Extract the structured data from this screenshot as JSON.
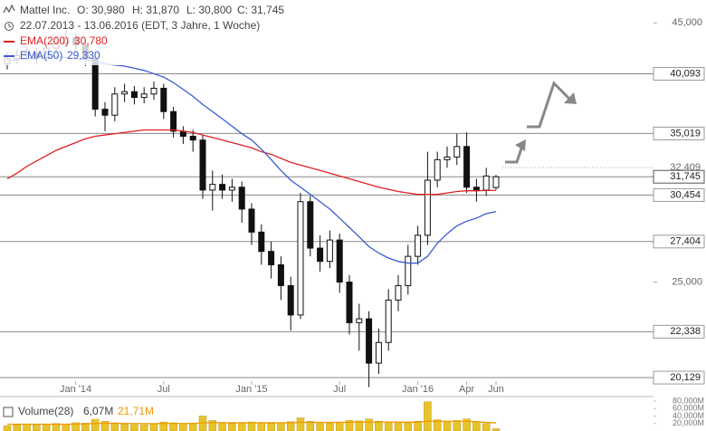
{
  "chart_data": {
    "type": "candlestick",
    "title": "Mattel Inc.",
    "subtitle": "22.07.2013 - 13.06.2016 (EDT, 3 Jahre, 1 Woche)",
    "quote": [
      "O: 30,980",
      "H: 31,870",
      "L: 30,800",
      "C: 31,745"
    ],
    "categories": [
      null,
      null,
      null,
      null,
      null,
      null,
      null,
      "Jan '14",
      null,
      null,
      null,
      null,
      null,
      null,
      null,
      null,
      "Jul",
      null,
      null,
      null,
      null,
      null,
      null,
      null,
      null,
      "Jan '15",
      null,
      null,
      null,
      null,
      null,
      null,
      null,
      null,
      "Jul",
      null,
      null,
      null,
      null,
      null,
      null,
      null,
      "Jan '16",
      null,
      null,
      null,
      null,
      "Apr",
      null,
      null,
      "Jun"
    ],
    "open": [
      41.0,
      41.5,
      41.8,
      42.0,
      41.6,
      42.5,
      43.0,
      43.5,
      42.8,
      41.5,
      37.0,
      36.5,
      38.3,
      38.5,
      38.0,
      38.3,
      38.8,
      36.8,
      35.2,
      34.8,
      34.5,
      30.8,
      31.2,
      30.8,
      31.0,
      29.5,
      28.0,
      26.8,
      26.0,
      24.8,
      23.2,
      30.0,
      27.0,
      26.2,
      27.5,
      25.0,
      22.8,
      23.0,
      20.8,
      21.8,
      24.0,
      24.8,
      26.5,
      27.8,
      31.5,
      33.0,
      33.2,
      34.0,
      31.0,
      30.8,
      30.98
    ],
    "high": [
      42.1,
      42.3,
      42.6,
      42.5,
      43.1,
      43.6,
      44.2,
      44.0,
      43.2,
      41.9,
      37.6,
      38.9,
      39.2,
      39.0,
      38.9,
      39.4,
      39.2,
      37.2,
      35.6,
      35.3,
      34.9,
      32.2,
      31.9,
      31.6,
      31.4,
      29.9,
      28.5,
      27.4,
      26.5,
      25.3,
      30.6,
      30.4,
      27.8,
      28.1,
      27.9,
      25.4,
      23.8,
      23.4,
      22.5,
      24.6,
      25.4,
      27.2,
      28.4,
      33.6,
      33.6,
      34.0,
      35.0,
      35.1,
      31.6,
      32.4,
      31.87
    ],
    "low": [
      40.5,
      41.0,
      41.3,
      41.0,
      41.2,
      42.0,
      42.6,
      42.3,
      40.8,
      36.4,
      35.2,
      36.0,
      37.6,
      37.4,
      37.5,
      37.8,
      36.2,
      34.7,
      34.2,
      33.6,
      30.2,
      29.4,
      30.2,
      30.0,
      28.6,
      27.2,
      26.0,
      25.2,
      24.0,
      22.4,
      23.0,
      26.5,
      25.6,
      25.8,
      24.4,
      22.2,
      21.4,
      19.7,
      20.3,
      21.4,
      23.4,
      24.3,
      26.0,
      27.2,
      31.0,
      32.4,
      32.6,
      30.6,
      30.0,
      30.4,
      30.8
    ],
    "close": [
      41.5,
      41.8,
      42.0,
      41.6,
      42.5,
      43.0,
      43.5,
      42.8,
      41.5,
      37.0,
      36.5,
      38.3,
      38.5,
      38.0,
      38.3,
      38.8,
      36.8,
      35.2,
      34.8,
      34.5,
      30.8,
      31.2,
      30.8,
      31.0,
      29.5,
      28.0,
      26.8,
      26.0,
      24.8,
      23.2,
      30.0,
      27.0,
      26.2,
      27.5,
      25.0,
      22.8,
      23.0,
      20.8,
      21.8,
      24.0,
      24.8,
      26.5,
      27.8,
      31.5,
      33.0,
      33.2,
      34.0,
      31.0,
      30.8,
      31.8,
      31.745
    ],
    "series": [
      {
        "name": "EMA(200)",
        "color": "#e02020",
        "value_label": "30,780",
        "values": [
          31.6,
          32.0,
          32.5,
          32.9,
          33.3,
          33.7,
          34.0,
          34.3,
          34.6,
          34.8,
          34.9,
          35.0,
          35.1,
          35.2,
          35.3,
          35.3,
          35.3,
          35.3,
          35.2,
          35.1,
          34.9,
          34.7,
          34.5,
          34.3,
          34.1,
          33.9,
          33.6,
          33.4,
          33.1,
          32.8,
          32.6,
          32.4,
          32.2,
          32.0,
          31.8,
          31.6,
          31.4,
          31.2,
          31.0,
          30.85,
          30.7,
          30.6,
          30.5,
          30.5,
          30.5,
          30.6,
          30.7,
          30.75,
          30.75,
          30.77,
          30.78
        ]
      },
      {
        "name": "EMA(50)",
        "color": "#3a5bd0",
        "value_label": "29,330",
        "values": [
          41.3,
          41.4,
          41.5,
          41.5,
          41.6,
          41.7,
          41.6,
          41.5,
          41.4,
          41.2,
          41.0,
          40.9,
          40.8,
          40.6,
          40.4,
          40.1,
          39.8,
          39.3,
          38.7,
          38.1,
          37.4,
          36.8,
          36.2,
          35.6,
          35.0,
          34.5,
          33.8,
          33.0,
          32.2,
          31.5,
          31.0,
          30.5,
          30.0,
          29.5,
          28.9,
          28.3,
          27.7,
          27.1,
          26.7,
          26.4,
          26.2,
          26.1,
          26.1,
          26.5,
          27.3,
          27.9,
          28.4,
          28.7,
          28.9,
          29.2,
          29.33
        ]
      }
    ],
    "log_scale": true,
    "ylim": [
      19.4,
      47.4
    ],
    "yticks": [
      {
        "value": 45,
        "label": "45,000"
      },
      {
        "value": 25,
        "label": "25,000"
      }
    ],
    "levels": [
      {
        "value": 40.093,
        "label": "40,093"
      },
      {
        "value": 35.019,
        "label": "35,019"
      },
      {
        "value": 32.409,
        "label": "32,409",
        "dotted": true
      },
      {
        "value": 31.745,
        "label": "31,745",
        "current": true
      },
      {
        "value": 30.454,
        "label": "30,454"
      },
      {
        "value": 27.404,
        "label": "27,404"
      },
      {
        "value": 22.338,
        "label": "22,338"
      },
      {
        "value": 20.129,
        "label": "20,129"
      }
    ],
    "volume": {
      "name": "Volume(28)",
      "value_label": "6,07M",
      "color": "#e8c42a",
      "values": [
        14,
        16,
        18,
        15,
        17,
        20,
        18,
        22,
        21,
        35,
        26,
        22,
        18,
        17,
        16,
        19,
        24,
        22,
        20,
        21,
        40,
        28,
        22,
        20,
        21,
        24,
        22,
        20,
        22,
        25,
        35,
        26,
        22,
        21,
        24,
        28,
        27,
        32,
        26,
        24,
        22,
        22,
        26,
        78,
        30,
        24,
        28,
        32,
        24,
        20,
        6.07
      ],
      "ema": {
        "name": "21,71M",
        "color": "#f09a00",
        "values": [
          18,
          18,
          18,
          18,
          18,
          18,
          18,
          18.5,
          19,
          20,
          20.5,
          20.5,
          20,
          20,
          19.5,
          19.5,
          20,
          20,
          20,
          20,
          22,
          22.5,
          22.5,
          22,
          22,
          22,
          22,
          22,
          22,
          22,
          23,
          23,
          23,
          23,
          23,
          23.5,
          23.5,
          24,
          24,
          24,
          24,
          23.5,
          23.5,
          26,
          26.5,
          26,
          26,
          26,
          25,
          23,
          21.71
        ]
      },
      "ylim": [
        0,
        80
      ],
      "yticks": [
        {
          "value": 80,
          "label": "80,000M"
        },
        {
          "value": 60,
          "label": "60,000M"
        },
        {
          "value": 40,
          "label": "40,000M"
        },
        {
          "value": 20,
          "label": "20,000M"
        }
      ]
    }
  }
}
